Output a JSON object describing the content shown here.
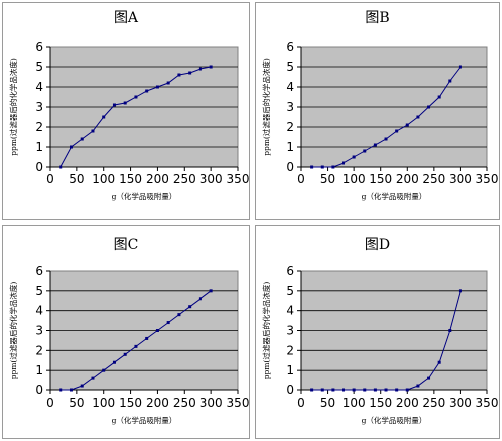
{
  "chart_data": [
    {
      "type": "line",
      "title": "图A",
      "xlabel": "g（化学品吸附量）",
      "ylabel": "ppm(过滤器后的化学品浓度)",
      "xlim": [
        0,
        350
      ],
      "ylim": [
        0,
        6
      ],
      "xticks": [
        "0",
        "50",
        "100",
        "150",
        "200",
        "250",
        "300",
        "350"
      ],
      "yticks": [
        "0",
        "1",
        "2",
        "3",
        "4",
        "5",
        "6"
      ],
      "grid": true,
      "legend": "none",
      "x": [
        20,
        40,
        60,
        80,
        100,
        120,
        140,
        160,
        180,
        200,
        220,
        240,
        260,
        280,
        300
      ],
      "y": [
        0,
        1.0,
        1.4,
        1.8,
        2.5,
        3.1,
        3.2,
        3.5,
        3.8,
        4.0,
        4.2,
        4.6,
        4.7,
        4.9,
        5.0
      ]
    },
    {
      "type": "line",
      "title": "图B",
      "xlabel": "g（化学品吸附量）",
      "ylabel": "ppm(过滤器后的化学品浓度)",
      "xlim": [
        0,
        350
      ],
      "ylim": [
        0,
        6
      ],
      "xticks": [
        "0",
        "50",
        "100",
        "150",
        "200",
        "250",
        "300",
        "350"
      ],
      "yticks": [
        "0",
        "1",
        "2",
        "3",
        "4",
        "5",
        "6"
      ],
      "grid": true,
      "legend": "none",
      "x": [
        20,
        40,
        60,
        80,
        100,
        120,
        140,
        160,
        180,
        200,
        220,
        240,
        260,
        280,
        300
      ],
      "y": [
        0,
        0,
        0,
        0.2,
        0.5,
        0.8,
        1.1,
        1.4,
        1.8,
        2.1,
        2.5,
        3.0,
        3.5,
        4.3,
        5.0
      ]
    },
    {
      "type": "line",
      "title": "图C",
      "xlabel": "g（化学品吸附量）",
      "ylabel": "ppm(过滤器后的化学品浓度)",
      "xlim": [
        0,
        350
      ],
      "ylim": [
        0,
        6
      ],
      "xticks": [
        "0",
        "50",
        "100",
        "150",
        "200",
        "250",
        "300",
        "350"
      ],
      "yticks": [
        "0",
        "1",
        "2",
        "3",
        "4",
        "5",
        "6"
      ],
      "grid": true,
      "legend": "none",
      "x": [
        20,
        40,
        60,
        80,
        100,
        120,
        140,
        160,
        180,
        200,
        220,
        240,
        260,
        280,
        300
      ],
      "y": [
        0,
        0,
        0.2,
        0.6,
        1.0,
        1.4,
        1.8,
        2.2,
        2.6,
        3.0,
        3.4,
        3.8,
        4.2,
        4.6,
        5.0
      ]
    },
    {
      "type": "line",
      "title": "图D",
      "xlabel": "g（化学品吸附量）",
      "ylabel": "ppm(过滤器后的化学品浓度)",
      "xlim": [
        0,
        350
      ],
      "ylim": [
        0,
        6
      ],
      "xticks": [
        "0",
        "50",
        "100",
        "150",
        "200",
        "250",
        "300",
        "350"
      ],
      "yticks": [
        "0",
        "1",
        "2",
        "3",
        "4",
        "5",
        "6"
      ],
      "grid": true,
      "legend": "none",
      "x": [
        20,
        40,
        60,
        80,
        100,
        120,
        140,
        160,
        180,
        200,
        220,
        240,
        260,
        280,
        300
      ],
      "y": [
        0,
        0,
        0,
        0,
        0,
        0,
        0,
        0,
        0,
        0,
        0.2,
        0.6,
        1.4,
        3.0,
        5.0
      ]
    }
  ],
  "colors": {
    "plot_background": "#c0c0c0",
    "series": "#000080",
    "gridline": "#000000",
    "panel_border": "#9a9a9a"
  }
}
